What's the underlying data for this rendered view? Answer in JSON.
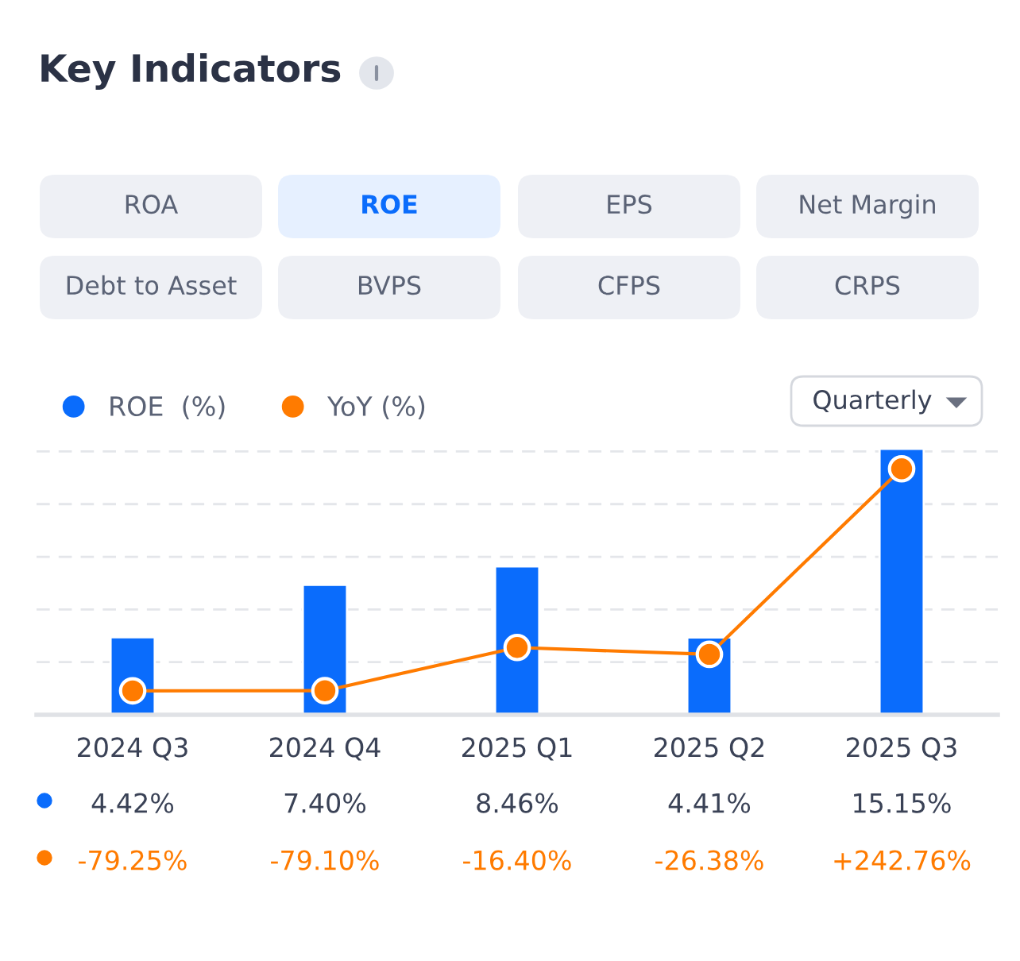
{
  "chart_data": {
    "type": "bar",
    "title": "Key Indicators",
    "categories": [
      "2024 Q3",
      "2024 Q4",
      "2025 Q1",
      "2025 Q2",
      "2025 Q3"
    ],
    "series": [
      {
        "name": "ROE  (%)",
        "color": "#0a6cfc",
        "values": [
          4.42,
          7.4,
          8.46,
          4.41,
          15.15
        ],
        "value_labels": [
          "4.42%",
          "7.40%",
          "8.46%",
          "4.41%",
          "15.15%"
        ]
      },
      {
        "name": "YoY (%)",
        "type": "line",
        "axis": "y2",
        "color": "#ff7b00",
        "marker": "circle",
        "values": [
          -79.25,
          -79.1,
          -16.4,
          -26.38,
          242.76
        ],
        "value_labels": [
          "-79.25%",
          "-79.10%",
          "-16.40%",
          "-26.38%",
          "+242.76%"
        ]
      }
    ],
    "ylim": [
      0,
      15.2
    ],
    "yticks": [
      {
        "value": 0,
        "label": null
      },
      {
        "value": 3,
        "label": null
      },
      {
        "value": 6,
        "label": null
      },
      {
        "value": 9,
        "label": null
      },
      {
        "value": 12,
        "label": null
      },
      {
        "value": 15,
        "label": null
      }
    ],
    "y2lim": [
      -114,
      273
    ],
    "tick_labels": "x",
    "grid": "y",
    "legend": "top left",
    "annotations": [
      "ROA",
      "ROE",
      "EPS",
      "Net Margin",
      "Debt to Asset",
      "BVPS",
      "CFPS",
      "CRPS",
      "Quarterly"
    ]
  }
}
